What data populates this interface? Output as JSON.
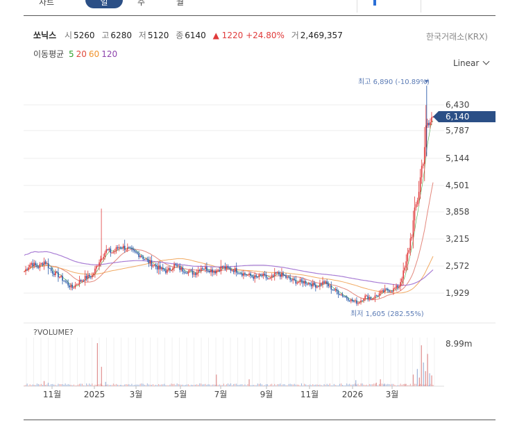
{
  "tabs": [
    {
      "label": "차트",
      "active": false
    },
    {
      "label": "일",
      "active": true
    },
    {
      "label": "주",
      "active": false
    },
    {
      "label": "월",
      "active": false
    }
  ],
  "header": {
    "stock_name": "쏘닉스",
    "open_label": "시",
    "open": "5260",
    "high_label": "고",
    "high": "6280",
    "low_label": "저",
    "low": "5120",
    "close_label": "종",
    "close": "6140",
    "change": "▲ 1220",
    "change_pct": "+24.80%",
    "volume_label": "거",
    "volume": "2,469,357",
    "exchange": "한국거래소(KRX)"
  },
  "moving_average": {
    "label": "이동평균",
    "periods": [
      {
        "label": "5",
        "color": "#2ca02c"
      },
      {
        "label": "20",
        "color": "#e0483a"
      },
      {
        "label": "60",
        "color": "#f0922a"
      },
      {
        "label": "120",
        "color": "#8e44ad"
      }
    ]
  },
  "scale_selector": {
    "label": "Linear"
  },
  "colors": {
    "up": "#e03a3a",
    "down": "#2a5aa8",
    "highlight": "#2b4f86",
    "annotation": "#5b7bb5",
    "ma5": "#2ca02c",
    "ma20": "#e07a6e",
    "ma60": "#f0a050",
    "ma120": "#a070d0"
  },
  "chart_data": {
    "type": "candlestick",
    "price_axis": {
      "ticks": [
        "6,430",
        "5,787",
        "5,144",
        "4,501",
        "3,858",
        "3,215",
        "2,572",
        "1,929"
      ],
      "ylim": [
        1500,
        7000
      ],
      "current_price_label": "6,140"
    },
    "annotations": {
      "high": "최고 6,890 (-10.89%)",
      "low": "최저 1,605 (282.55%)"
    },
    "x_axis": {
      "ticks": [
        "11월",
        "2025",
        "3월",
        "5월",
        "7월",
        "9월",
        "11월",
        "2026",
        "3월"
      ]
    },
    "volume_panel": {
      "title": "?VOLUME?",
      "max_label": "8.99m"
    },
    "price_path": [
      2450,
      2650,
      2550,
      2700,
      2450,
      2350,
      2200,
      2050,
      2200,
      2300,
      2350,
      2700,
      2950,
      2900,
      3050,
      3000,
      2900,
      2850,
      2700,
      2600,
      2500,
      2450,
      2600,
      2500,
      2450,
      2400,
      2550,
      2500,
      2450,
      2550,
      2500,
      2480,
      2400,
      2350,
      2300,
      2350,
      2250,
      2400,
      2350,
      2250,
      2200,
      2200,
      2150,
      2100,
      2200,
      2050,
      1950,
      1850,
      1750,
      1700,
      1850,
      1800,
      1900,
      2000,
      2000,
      2100,
      2600,
      3500,
      4500,
      5800,
      6140
    ],
    "volume_spikes": [
      {
        "pos": 0.05,
        "value": 0.12
      },
      {
        "pos": 0.06,
        "value": 0.08
      },
      {
        "pos": 0.18,
        "value": 1.0
      },
      {
        "pos": 0.19,
        "value": 0.45
      },
      {
        "pos": 0.2,
        "value": 0.1
      },
      {
        "pos": 0.47,
        "value": 0.27
      },
      {
        "pos": 0.55,
        "value": 0.16
      },
      {
        "pos": 0.81,
        "value": 0.14
      },
      {
        "pos": 0.86,
        "value": 0.08
      },
      {
        "pos": 0.87,
        "value": 0.16
      },
      {
        "pos": 0.88,
        "value": 0.06
      },
      {
        "pos": 0.93,
        "value": 0.05
      },
      {
        "pos": 0.95,
        "value": 0.27
      },
      {
        "pos": 0.96,
        "value": 0.4
      },
      {
        "pos": 0.965,
        "value": 0.2
      },
      {
        "pos": 0.97,
        "value": 0.95
      },
      {
        "pos": 0.975,
        "value": 0.55
      },
      {
        "pos": 0.98,
        "value": 0.35
      },
      {
        "pos": 0.985,
        "value": 0.75
      },
      {
        "pos": 0.99,
        "value": 0.3
      },
      {
        "pos": 0.995,
        "value": 0.25
      }
    ]
  }
}
